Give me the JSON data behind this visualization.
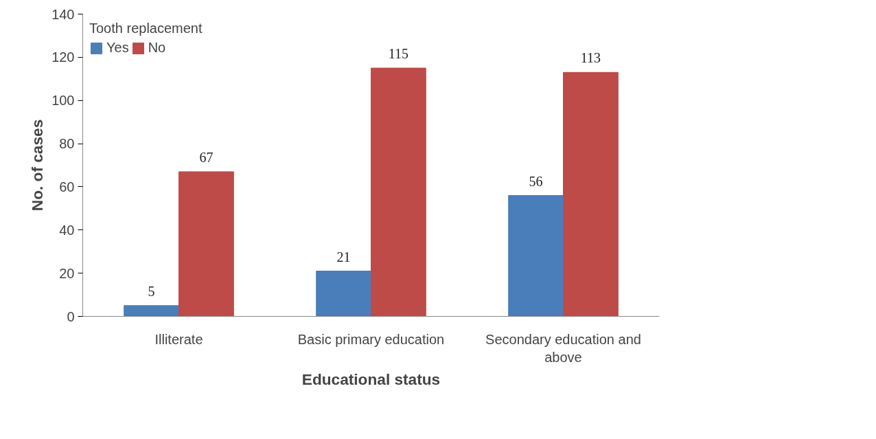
{
  "chart_data": {
    "type": "bar",
    "xlabel": "Educational status",
    "ylabel": "No. of cases",
    "legend_title": "Tooth replacement",
    "categories": [
      "Illiterate",
      "Basic primary education",
      "Secondary education and above"
    ],
    "series": [
      {
        "name": "Yes",
        "color": "#4a7ebb",
        "values": [
          5,
          21,
          56
        ]
      },
      {
        "name": "No",
        "color": "#be4b48",
        "values": [
          67,
          115,
          113
        ]
      }
    ],
    "ylim": [
      0,
      140
    ],
    "yticks": [
      0,
      20,
      40,
      60,
      80,
      100,
      120,
      140
    ],
    "grid": false,
    "legend": "top left",
    "data_labels": true
  }
}
